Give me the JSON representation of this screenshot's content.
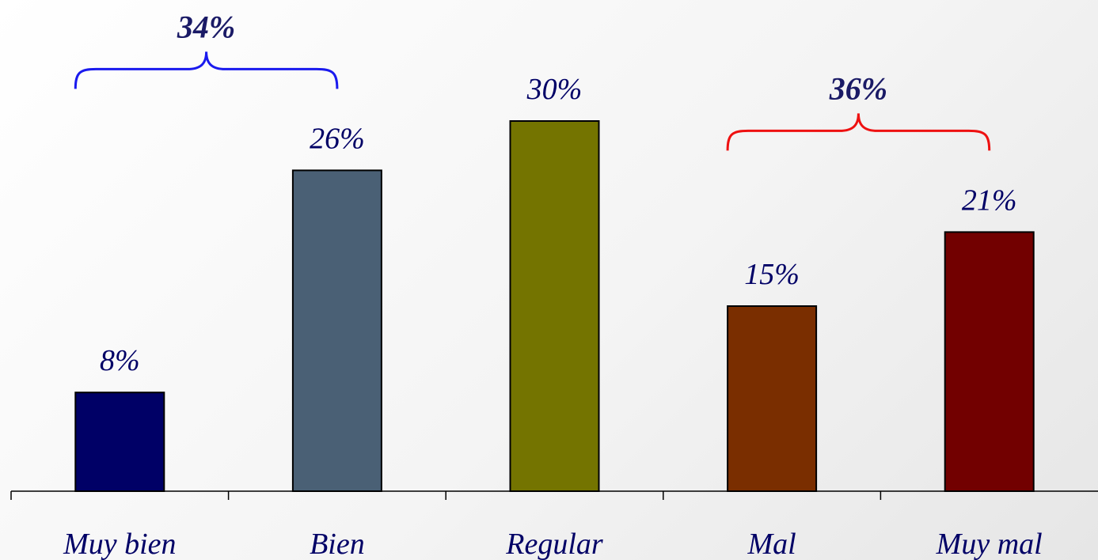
{
  "chart_data": {
    "type": "bar",
    "categories": [
      "Muy bien",
      "Bien",
      "Regular",
      "Mal",
      "Muy mal"
    ],
    "values": [
      8,
      26,
      30,
      15,
      21
    ],
    "data_labels": [
      "8%",
      "26%",
      "30%",
      "15%",
      "21%"
    ],
    "colors": [
      "#000066",
      "#4a6075",
      "#747400",
      "#7a2e00",
      "#720000"
    ],
    "ylim": [
      0,
      37
    ],
    "grid": false,
    "groups": [
      {
        "label": "34%",
        "from": 0,
        "to": 1,
        "color": "#1a1aee"
      },
      {
        "label": "36%",
        "from": 3,
        "to": 4,
        "color": "#ee1111"
      }
    ]
  }
}
